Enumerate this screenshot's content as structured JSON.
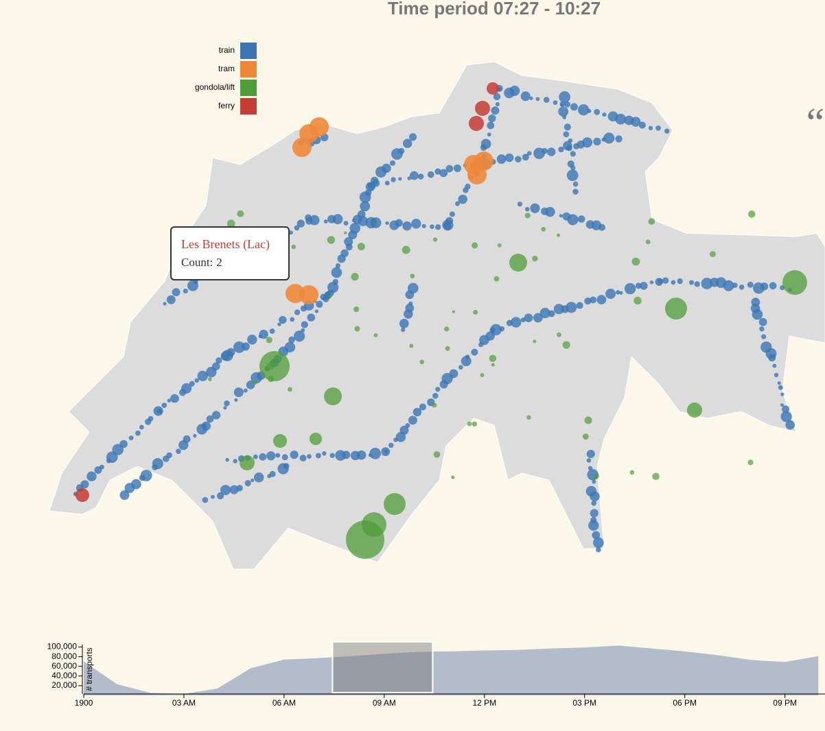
{
  "title": "Time period 07:27 - 10:27",
  "quote_mark": "“",
  "legend": [
    {
      "name": "train",
      "color": "#3b75b4"
    },
    {
      "name": "tram",
      "color": "#f0883a"
    },
    {
      "name": "gondola/lift",
      "color": "#4f9d3a"
    },
    {
      "name": "ferry",
      "color": "#c63d36"
    }
  ],
  "tooltip": {
    "name": "Les Brenets (Lac)",
    "label": "Count:",
    "count": 2
  },
  "chart_data": {
    "type": "area",
    "y_label": "# transports",
    "color": "#b2bccb",
    "x": [
      0,
      1,
      2,
      3,
      4,
      5,
      6,
      7,
      8,
      9,
      10,
      11,
      12,
      13,
      14,
      15,
      16,
      17,
      18,
      19,
      20,
      21,
      22
    ],
    "values": [
      70000,
      23000,
      5000,
      3000,
      14000,
      56000,
      74000,
      77000,
      81000,
      86000,
      90000,
      91000,
      93000,
      94000,
      97000,
      99000,
      103000,
      97000,
      91000,
      83000,
      73000,
      69000,
      81000
    ],
    "xlim": [
      0,
      22.2
    ],
    "xticks": [
      {
        "value": 0,
        "label": "1900"
      },
      {
        "value": 3,
        "label": "03 AM"
      },
      {
        "value": 6,
        "label": "06 AM"
      },
      {
        "value": 9,
        "label": "09 AM"
      },
      {
        "value": 12,
        "label": "12 PM"
      },
      {
        "value": 15,
        "label": "03 PM"
      },
      {
        "value": 18,
        "label": "06 PM"
      },
      {
        "value": 21,
        "label": "09 PM"
      }
    ],
    "ylim": [
      0,
      105000
    ],
    "yticks": [
      {
        "value": 20000,
        "label": "20,000"
      },
      {
        "value": 40000,
        "label": "40,000"
      },
      {
        "value": 60000,
        "label": "60,000"
      },
      {
        "value": 80000,
        "label": "80,000"
      },
      {
        "value": 100000,
        "label": "100,000"
      }
    ],
    "brush": [
      7.45,
      10.45
    ]
  }
}
